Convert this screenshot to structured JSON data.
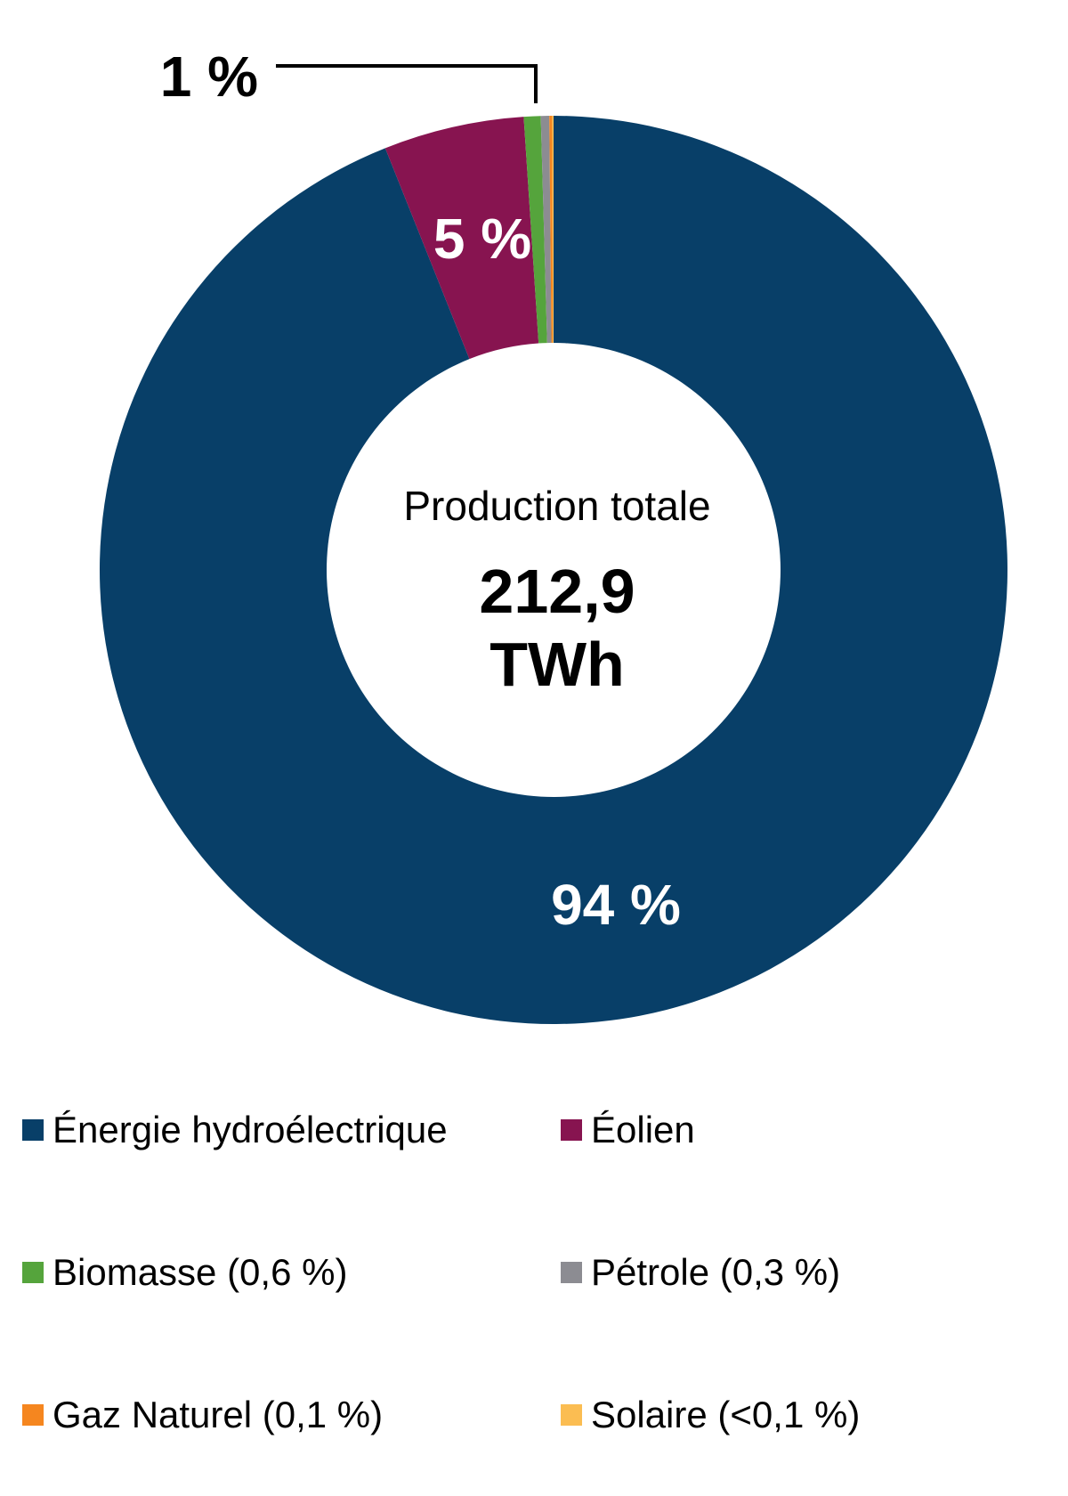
{
  "chart_data": {
    "type": "donut",
    "center_label": "Production totale",
    "center_value": "212,9",
    "center_unit": "TWh",
    "series": [
      {
        "name": "Énergie hydroélectrique",
        "legend": "Énergie hydroélectrique",
        "value": 94.0,
        "color": "#083f68",
        "label": "94 %"
      },
      {
        "name": "Éolien",
        "legend": "Éolien",
        "value": 5.0,
        "color": "#871450",
        "label": "5 %"
      },
      {
        "name": "Biomasse",
        "legend": "Biomasse (0,6 %)",
        "value": 0.6,
        "color": "#55a43c",
        "label": ""
      },
      {
        "name": "Pétrole",
        "legend": "Pétrole (0,3 %)",
        "value": 0.3,
        "color": "#8c8c92",
        "label": ""
      },
      {
        "name": "Gaz Naturel",
        "legend": "Gaz Naturel (0,1 %)",
        "value": 0.1,
        "color": "#f5861f",
        "label": ""
      },
      {
        "name": "Solaire",
        "legend": "Solaire (<0,1 %)",
        "value": 0.05,
        "color": "#fbbd52",
        "label": ""
      }
    ],
    "callout_label": "1 %",
    "legend_position": "bottom"
  }
}
